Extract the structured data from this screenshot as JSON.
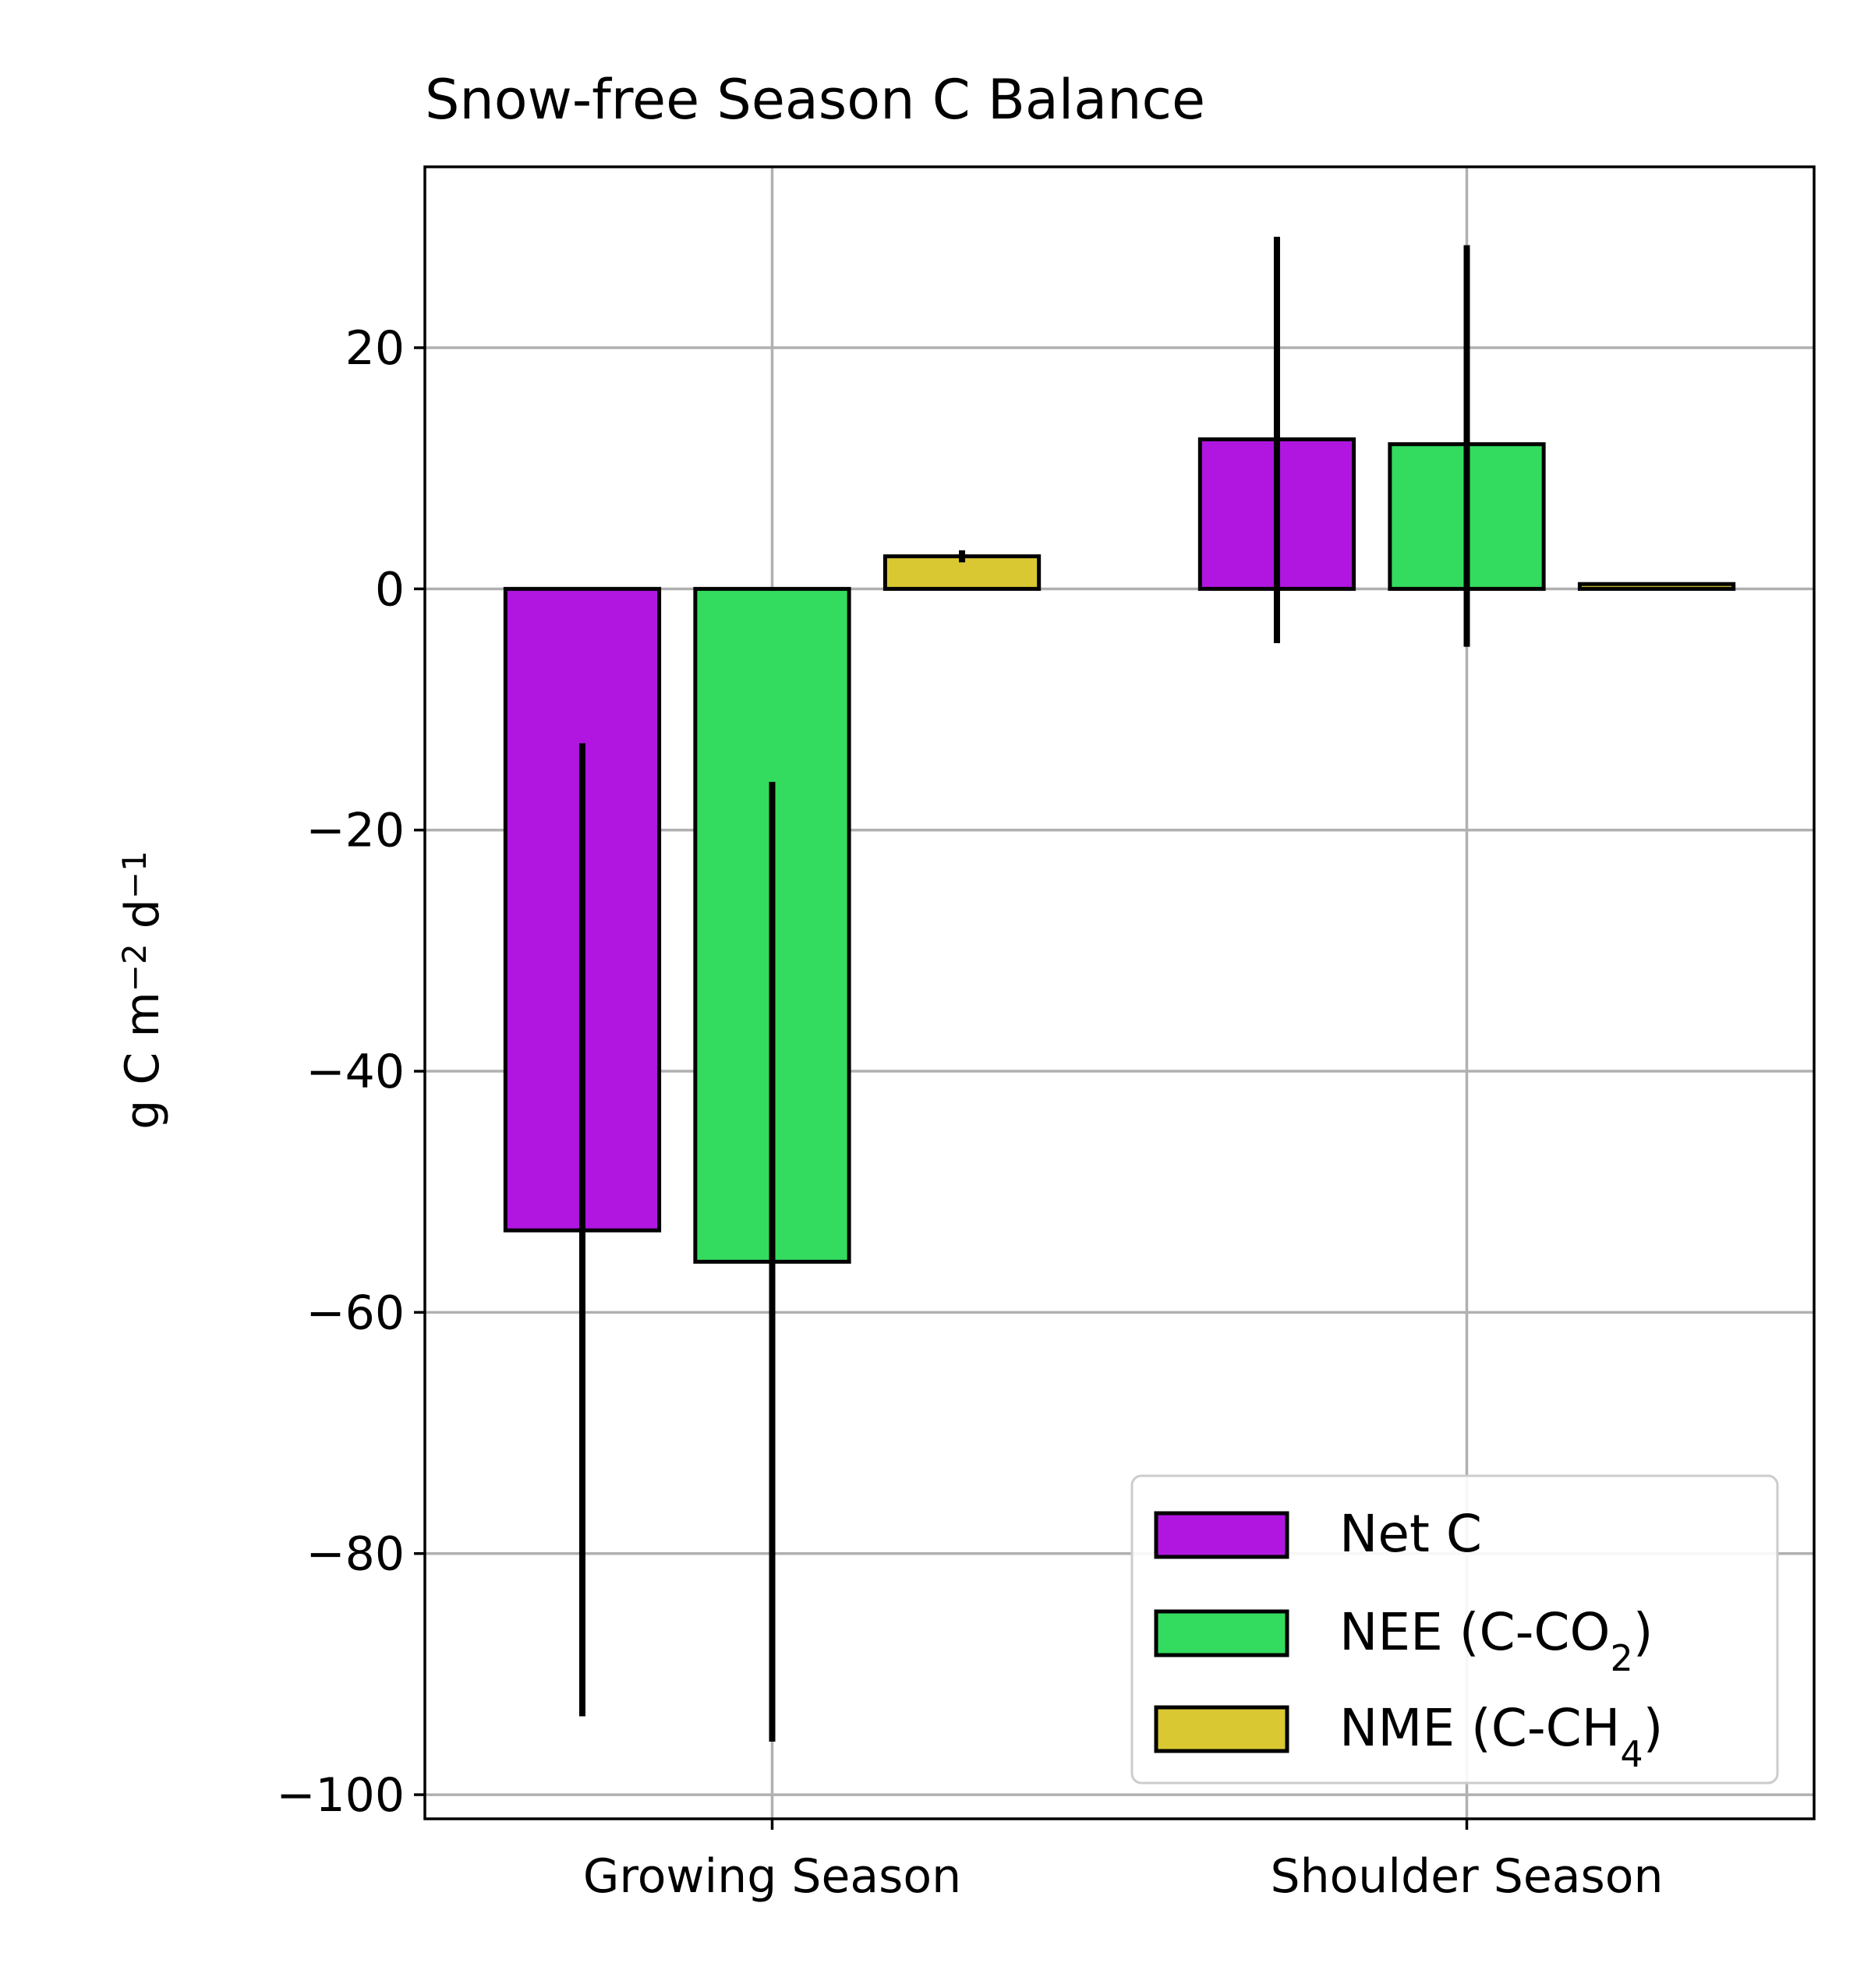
{
  "chart_data": {
    "type": "bar",
    "title": "Snow-free Season C Balance",
    "xlabel": "",
    "ylabel": "g C m⁻² d⁻¹",
    "ylim": [
      -102,
      35
    ],
    "yticks": [
      -100,
      -80,
      -60,
      -40,
      -20,
      0,
      20
    ],
    "ytick_labels": [
      "−100",
      "−80",
      "−60",
      "−40",
      "−20",
      "0",
      "20"
    ],
    "categories": [
      "Growing Season",
      "Shoulder Season"
    ],
    "grid": true,
    "legend_position": "lower-right",
    "series": [
      {
        "name": "Net C",
        "name_base": "Net C",
        "name_sub": "",
        "name_tail": "",
        "color": "#b016e0",
        "values": [
          -53.2,
          12.4
        ],
        "error_low": [
          -93.5,
          -4.5
        ],
        "error_high": [
          -12.8,
          29.2
        ]
      },
      {
        "name": "NEE (C-CO2)",
        "name_base": "NEE (C-CO",
        "name_sub": "2",
        "name_tail": ")",
        "color": "#33dc5e",
        "values": [
          -55.8,
          12.0
        ],
        "error_low": [
          -95.6,
          -4.8
        ],
        "error_high": [
          -16.0,
          28.5
        ]
      },
      {
        "name": "NME (C-CH4)",
        "name_base": "NME (C-CH",
        "name_sub": "4",
        "name_tail": ")",
        "color": "#d9c832",
        "values": [
          2.7,
          0.4
        ],
        "error_low": [
          2.2,
          0.3
        ],
        "error_high": [
          3.2,
          0.5
        ]
      }
    ]
  }
}
